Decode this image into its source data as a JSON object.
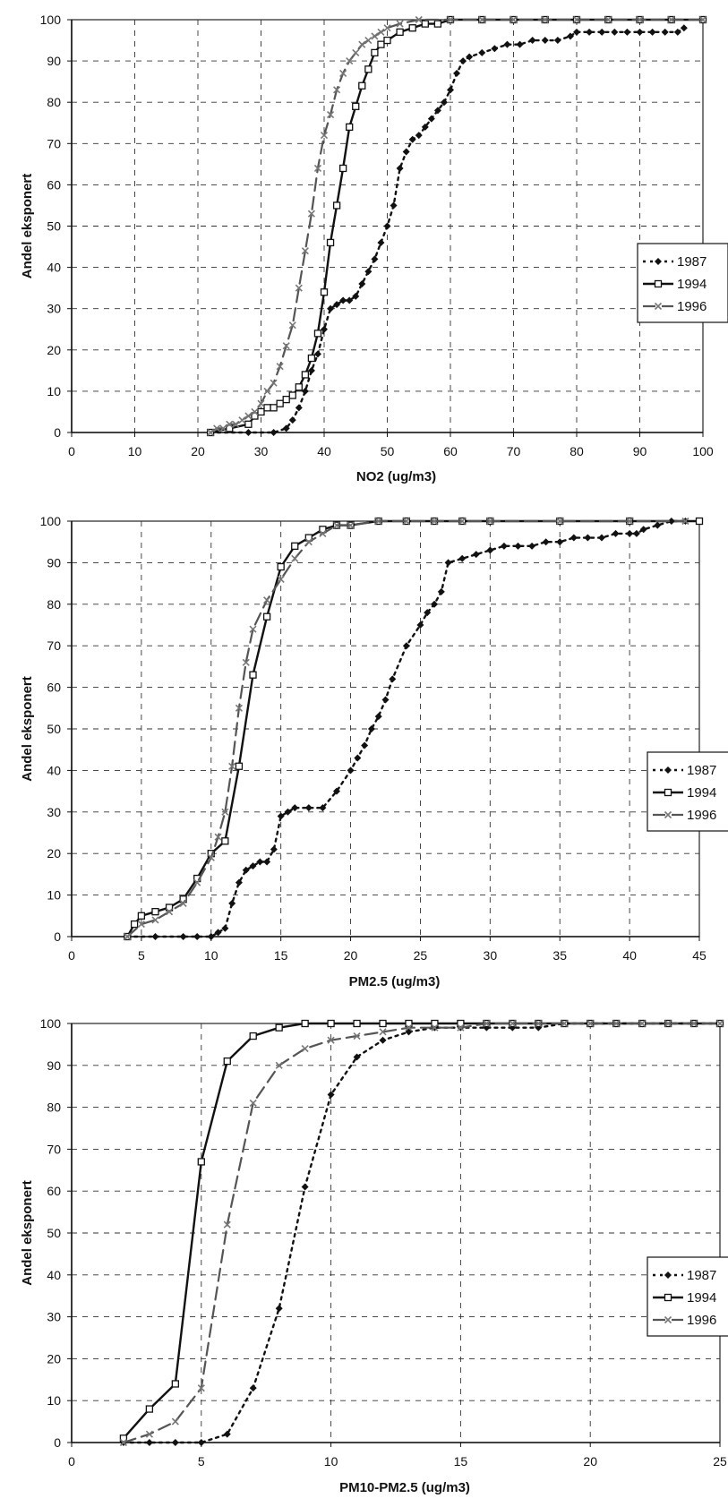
{
  "chart_data": [
    {
      "type": "line",
      "xlabel": "NO2 (ug/m3)",
      "ylabel": "Andel eksponert",
      "xlim": [
        0,
        100
      ],
      "ylim": [
        0,
        100
      ],
      "xticks": [
        0,
        10,
        20,
        30,
        40,
        50,
        60,
        70,
        80,
        90,
        100
      ],
      "yticks": [
        0,
        10,
        20,
        30,
        40,
        50,
        60,
        70,
        80,
        90,
        100
      ],
      "grid": true,
      "legend_position": "right",
      "series": [
        {
          "name": "1987",
          "style": "dotted",
          "marker": "diamond",
          "x": [
            22,
            28,
            32,
            34,
            35,
            36,
            37,
            38,
            39,
            40,
            41,
            42,
            43,
            44,
            45,
            46,
            47,
            48,
            49,
            50,
            51,
            52,
            53,
            54,
            55,
            56,
            57,
            58,
            59,
            60,
            61,
            62,
            63,
            65,
            67,
            69,
            71,
            73,
            75,
            77,
            79,
            80,
            82,
            84,
            86,
            88,
            90,
            92,
            94,
            96,
            97
          ],
          "y": [
            0,
            0,
            0,
            1,
            3,
            6,
            10,
            15,
            19,
            25,
            30,
            31,
            32,
            32,
            33,
            36,
            39,
            42,
            46,
            50,
            55,
            64,
            68,
            71,
            72,
            74,
            76,
            78,
            80,
            83,
            87,
            90,
            91,
            92,
            93,
            94,
            94,
            95,
            95,
            95,
            96,
            97,
            97,
            97,
            97,
            97,
            97,
            97,
            97,
            97,
            98
          ]
        },
        {
          "name": "1994",
          "style": "solid",
          "marker": "square",
          "x": [
            22,
            25,
            28,
            29,
            30,
            31,
            32,
            33,
            34,
            35,
            36,
            37,
            38,
            39,
            40,
            41,
            42,
            43,
            44,
            45,
            46,
            47,
            48,
            49,
            50,
            52,
            54,
            56,
            58,
            60,
            65,
            70,
            75,
            80,
            85,
            90,
            95,
            100
          ],
          "y": [
            0,
            1,
            2,
            4,
            5,
            6,
            6,
            7,
            8,
            9,
            11,
            14,
            18,
            24,
            34,
            46,
            55,
            64,
            74,
            79,
            84,
            88,
            92,
            94,
            95,
            97,
            98,
            99,
            99,
            100,
            100,
            100,
            100,
            100,
            100,
            100,
            100,
            100
          ]
        },
        {
          "name": "1996",
          "style": "dashed",
          "marker": "cross",
          "x": [
            22,
            23,
            24,
            25,
            26,
            27,
            28,
            29,
            30,
            31,
            32,
            33,
            34,
            35,
            36,
            37,
            38,
            39,
            40,
            41,
            42,
            43,
            44,
            45,
            46,
            47,
            48,
            49,
            50,
            52,
            55,
            60,
            65,
            70,
            75,
            80,
            85,
            90,
            95,
            100
          ],
          "y": [
            0,
            1,
            1,
            2,
            2,
            3,
            4,
            5,
            7,
            10,
            12,
            16,
            21,
            26,
            35,
            44,
            53,
            64,
            72,
            77,
            83,
            87,
            90,
            92,
            94,
            95,
            96,
            97,
            98,
            99,
            100,
            100,
            100,
            100,
            100,
            100,
            100,
            100,
            100,
            100
          ]
        }
      ]
    },
    {
      "type": "line",
      "xlabel": "PM2.5 (ug/m3)",
      "ylabel": "Andel eksponert",
      "xlim": [
        0,
        45
      ],
      "ylim": [
        0,
        100
      ],
      "xticks": [
        0,
        5,
        10,
        15,
        20,
        25,
        30,
        35,
        40,
        45
      ],
      "yticks": [
        0,
        10,
        20,
        30,
        40,
        50,
        60,
        70,
        80,
        90,
        100
      ],
      "grid": true,
      "legend_position": "right",
      "series": [
        {
          "name": "1987",
          "style": "dotted",
          "marker": "diamond",
          "x": [
            4,
            6,
            8,
            9,
            10,
            10.5,
            11,
            11.5,
            12,
            12.5,
            13,
            13.5,
            14,
            14.5,
            15,
            15.5,
            16,
            17,
            18,
            19,
            20,
            20.5,
            21,
            21.5,
            22,
            22.5,
            23,
            24,
            25,
            25.5,
            26,
            26.5,
            27,
            28,
            29,
            30,
            31,
            32,
            33,
            34,
            35,
            36,
            37,
            38,
            39,
            40,
            40.5,
            41,
            42,
            43,
            44
          ],
          "y": [
            0,
            0,
            0,
            0,
            0,
            1,
            2,
            8,
            13,
            16,
            17,
            18,
            18,
            21,
            29,
            30,
            31,
            31,
            31,
            35,
            40,
            43,
            46,
            50,
            53,
            57,
            62,
            70,
            75,
            78,
            80,
            83,
            90,
            91,
            92,
            93,
            94,
            94,
            94,
            95,
            95,
            96,
            96,
            96,
            97,
            97,
            97,
            98,
            99,
            100,
            100
          ]
        },
        {
          "name": "1994",
          "style": "solid",
          "marker": "square",
          "x": [
            4,
            4.5,
            5,
            6,
            7,
            8,
            9,
            10,
            11,
            12,
            13,
            14,
            15,
            16,
            17,
            18,
            19,
            20,
            22,
            24,
            26,
            28,
            30,
            35,
            40,
            45
          ],
          "y": [
            0,
            3,
            5,
            6,
            7,
            9,
            14,
            20,
            23,
            41,
            63,
            77,
            89,
            94,
            96,
            98,
            99,
            99,
            100,
            100,
            100,
            100,
            100,
            100,
            100,
            100
          ]
        },
        {
          "name": "1996",
          "style": "dashed",
          "marker": "cross",
          "x": [
            4,
            5,
            6,
            7,
            8,
            9,
            10,
            10.5,
            11,
            11.5,
            12,
            12.5,
            13,
            14,
            15,
            16,
            17,
            18,
            19,
            20,
            22,
            24,
            26,
            28,
            30,
            35,
            40,
            44
          ],
          "y": [
            0,
            3,
            4,
            6,
            8,
            13,
            19,
            24,
            30,
            41,
            55,
            66,
            74,
            81,
            86,
            91,
            95,
            97,
            99,
            99,
            100,
            100,
            100,
            100,
            100,
            100,
            100,
            100
          ]
        }
      ]
    },
    {
      "type": "line",
      "xlabel": "PM10-PM2.5 (ug/m3)",
      "ylabel": "Andel eksponert",
      "xlim": [
        0,
        25
      ],
      "ylim": [
        0,
        100
      ],
      "xticks": [
        0,
        5,
        10,
        15,
        20,
        25
      ],
      "yticks": [
        0,
        10,
        20,
        30,
        40,
        50,
        60,
        70,
        80,
        90,
        100
      ],
      "grid": true,
      "legend_position": "right",
      "series": [
        {
          "name": "1987",
          "style": "dotted",
          "marker": "diamond",
          "x": [
            2,
            3,
            4,
            5,
            6,
            7,
            8,
            9,
            10,
            11,
            12,
            13,
            14,
            15,
            16,
            17,
            18,
            19,
            20,
            21,
            22,
            23,
            24,
            25
          ],
          "y": [
            0,
            0,
            0,
            0,
            2,
            13,
            32,
            61,
            83,
            92,
            96,
            98,
            99,
            99,
            99,
            99,
            99,
            100,
            100,
            100,
            100,
            100,
            100,
            100
          ]
        },
        {
          "name": "1994",
          "style": "solid",
          "marker": "square",
          "x": [
            2,
            3,
            4,
            5,
            6,
            7,
            8,
            9,
            10,
            11,
            12,
            13,
            14,
            15,
            16,
            17,
            18,
            19,
            20,
            21,
            22,
            23,
            24,
            25
          ],
          "y": [
            1,
            8,
            14,
            67,
            91,
            97,
            99,
            100,
            100,
            100,
            100,
            100,
            100,
            100,
            100,
            100,
            100,
            100,
            100,
            100,
            100,
            100,
            100,
            100
          ]
        },
        {
          "name": "1996",
          "style": "dashed",
          "marker": "cross",
          "x": [
            2,
            3,
            4,
            5,
            6,
            7,
            8,
            9,
            10,
            11,
            12,
            13,
            14,
            15,
            16,
            17,
            18,
            19,
            20,
            21,
            22,
            23,
            24,
            25
          ],
          "y": [
            0,
            2,
            5,
            13,
            52,
            81,
            90,
            94,
            96,
            97,
            98,
            99,
            99,
            99,
            100,
            100,
            100,
            100,
            100,
            100,
            100,
            100,
            100,
            100
          ]
        }
      ]
    }
  ]
}
